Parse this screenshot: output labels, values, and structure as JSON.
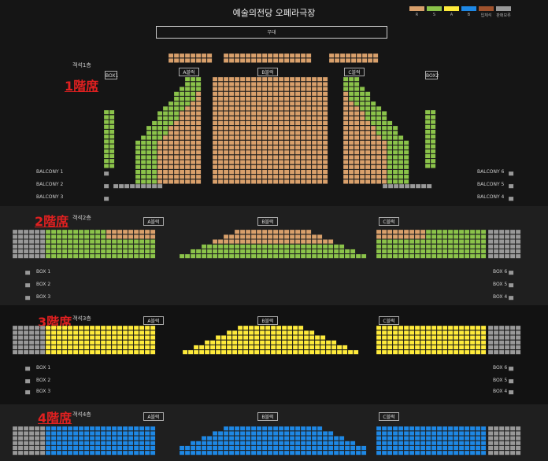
{
  "header": {
    "title": "예술의전당 오페라극장"
  },
  "legend": [
    {
      "grade": "R",
      "color": "#d9a06b"
    },
    {
      "grade": "S",
      "color": "#8bc34a"
    },
    {
      "grade": "A",
      "color": "#ffeb3b"
    },
    {
      "grade": "B",
      "color": "#1e88e5"
    },
    {
      "grade": "입체석",
      "color": "#a0522d"
    },
    {
      "grade": "판매보류",
      "color": "#999999"
    }
  ],
  "stage_label": "무대",
  "floors": [
    {
      "label": "1階席",
      "sub": "객석1층",
      "blocks": [
        "A블럭",
        "B블럭",
        "C블럭"
      ],
      "boxes_left": [
        "BOX1"
      ],
      "boxes_right": [
        "BOX2"
      ],
      "balcony_left": [
        "BALCONY 1",
        "BALCONY 2",
        "BALCONY 3"
      ],
      "balcony_right": [
        "BALCONY 6",
        "BALCONY 5",
        "BALCONY 4"
      ]
    },
    {
      "label": "2階席",
      "sub": "객석2층",
      "blocks": [
        "A블럭",
        "B블럭",
        "C블럭"
      ],
      "box_left": [
        "BOX 1",
        "BOX 2",
        "BOX 3"
      ],
      "box_right": [
        "BOX 6",
        "BOX 5",
        "BOX 4"
      ]
    },
    {
      "label": "3階席",
      "sub": "객석3층",
      "blocks": [
        "A블럭",
        "B블럭",
        "C블럭"
      ],
      "box_left": [
        "BOX 1",
        "BOX 2",
        "BOX 3"
      ],
      "box_right": [
        "BOX 6",
        "BOX 5",
        "BOX 4"
      ]
    },
    {
      "label": "4階席",
      "sub": "객석4층",
      "blocks": [
        "A블럭",
        "B블럭",
        "C블럭"
      ]
    }
  ],
  "chart_data": {
    "type": "heatmap",
    "colors": {
      "R": "#d9a06b",
      "S": "#8bc34a",
      "A": "#ffeb3b",
      "B": "#1e88e5",
      "hold": "#999999"
    }
  }
}
